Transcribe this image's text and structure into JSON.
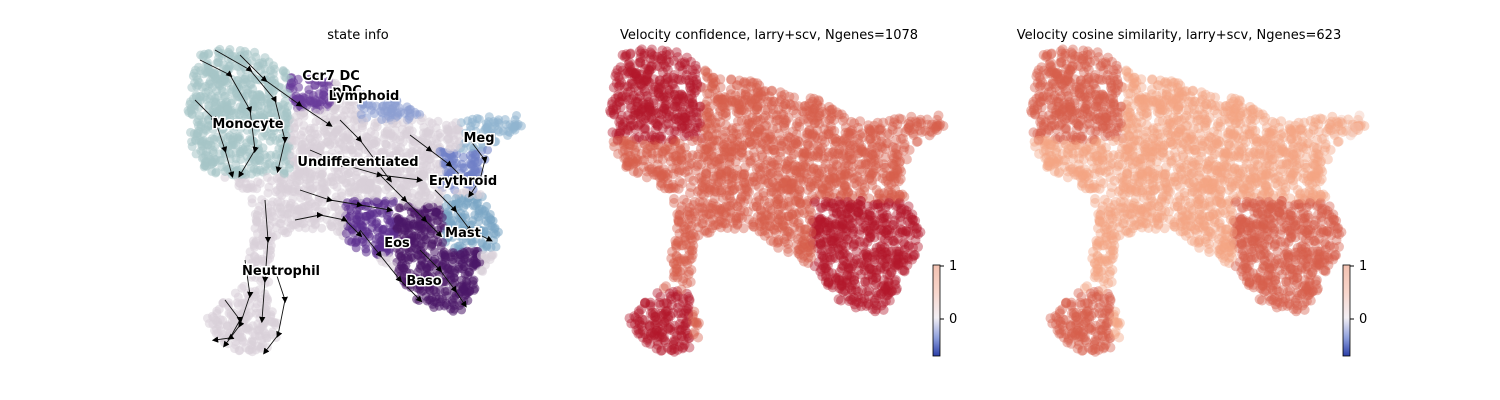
{
  "chart_data": [
    {
      "type": "scatter",
      "title": "state info",
      "legend": "on data",
      "series": [
        {
          "name": "Undifferentiated",
          "color": "#d8cfd9",
          "label_pos": [
            0.0,
            0.2
          ]
        },
        {
          "name": "Monocyte",
          "color": "#a5c4c7",
          "label_pos": [
            -1.0,
            0.6
          ]
        },
        {
          "name": "Ccr7 DC",
          "color": "#6a3d9a",
          "label_pos": [
            -0.25,
            1.1
          ]
        },
        {
          "name": "pDC",
          "color": "#7b5cac",
          "label_pos": [
            -0.1,
            0.95
          ]
        },
        {
          "name": "Lymphoid",
          "color": "#8d9fd2",
          "label_pos": [
            0.05,
            0.9
          ]
        },
        {
          "name": "Meg",
          "color": "#8fb4cf",
          "label_pos": [
            1.1,
            0.45
          ]
        },
        {
          "name": "Erythroid",
          "color": "#6f7fc6",
          "label_pos": [
            0.95,
            0.0
          ]
        },
        {
          "name": "Mast",
          "color": "#7aa5c4",
          "label_pos": [
            0.95,
            -0.55
          ]
        },
        {
          "name": "Eos",
          "color": "#5b2d8e",
          "label_pos": [
            0.35,
            -0.65
          ]
        },
        {
          "name": "Baso",
          "color": "#4a1868",
          "label_pos": [
            0.6,
            -1.05
          ]
        },
        {
          "name": "Neutrophil",
          "color": "#d8cfd9",
          "label_pos": [
            -0.7,
            -0.95
          ]
        }
      ]
    },
    {
      "type": "scatter",
      "title": "Velocity confidence, larry+scv, Ngenes=1078",
      "colorbar": {
        "ticks": [
          "1",
          "0"
        ],
        "range": [
          -0.7,
          1
        ]
      },
      "colors": [
        "#b2182b",
        "#d6604d"
      ]
    },
    {
      "type": "scatter",
      "title": "Velocity cosine similarity, larry+scv, Ngenes=623",
      "colorbar": {
        "ticks": [
          "1",
          "0"
        ],
        "range": [
          -0.7,
          1
        ]
      },
      "colors": [
        "#d6604d",
        "#f4a582"
      ]
    }
  ]
}
